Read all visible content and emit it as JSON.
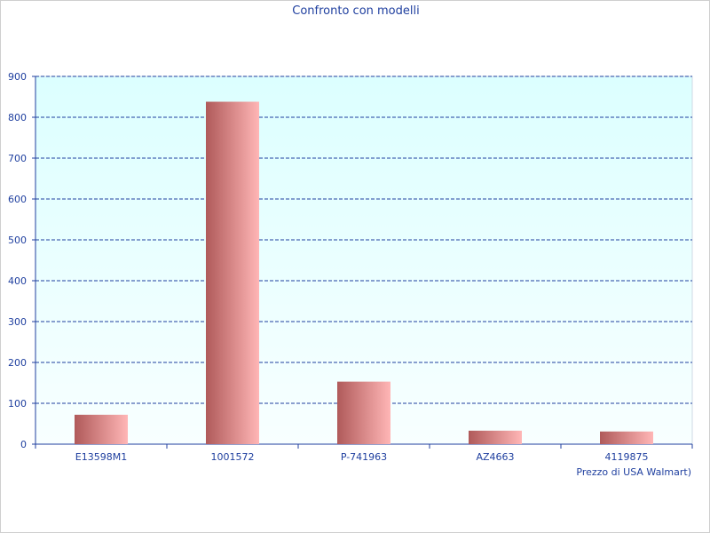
{
  "chart_data": {
    "type": "bar",
    "title": "Confronto con modelli",
    "xlabel": "Prezzo di USA Walmart)",
    "ylabel": "",
    "categories": [
      "E13598M1",
      "1001572",
      "P-741963",
      "AZ4663",
      "4119875"
    ],
    "values": [
      72,
      838,
      153,
      33,
      31
    ],
    "ylim": [
      0,
      900
    ],
    "yticks": [
      0,
      100,
      200,
      300,
      400,
      500,
      600,
      700,
      800,
      900
    ],
    "grid": true,
    "legend": "none",
    "colors": {
      "bar_dark": "#b05a5a",
      "bar_light": "#ffb6b6",
      "plot_top": "#dcffff",
      "plot_bottom": "#f8ffff",
      "grid": "#1f3f9f",
      "text": "#1f3f9f"
    }
  }
}
